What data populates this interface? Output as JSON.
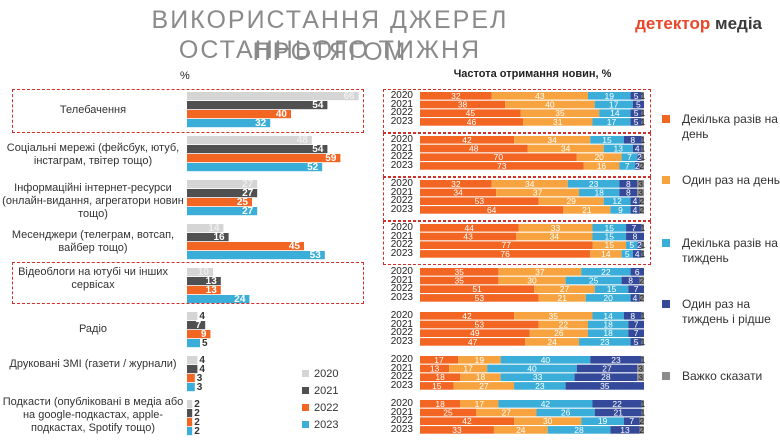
{
  "header": {
    "title_line1": "ВИКОРИСТАННЯ ДЖЕРЕЛ ПРОТЯГОМ",
    "title_line2": "ОСТАННЬОГО ТИЖНЯ",
    "logo_brand": "детектор",
    "logo_suffix": "медіа"
  },
  "colors": {
    "y2020": "#d5d5d5",
    "y2021": "#505050",
    "y2022": "#f26522",
    "y2023": "#3aaed8",
    "several_day": "#f26522",
    "once_day": "#f7a440",
    "several_week": "#3aaed8",
    "once_week": "#34499a",
    "hard": "#8c8c8c"
  },
  "chart_data": [
    {
      "type": "bar",
      "orientation": "horizontal",
      "unit_label": "%",
      "categories": [
        "Телебачення",
        "Соціальні мережі (фейсбук, ютуб, інстаграм, твітер тощо)",
        "Інформаційні інтернет-ресурси (онлайн-видання, агрегатори новин тощо)",
        "Месенджери (телеграм, вотсап, вайбер тощо)",
        "Відеоблоги на ютубі чи інших сервісах",
        "Радіо",
        "Друковані ЗМІ (газети / журнали)",
        "Подкасти (опубліковані в медіа або на google-подкастах, apple-подкастах, Spotify тощо)"
      ],
      "series": [
        {
          "name": "2020",
          "values": [
            66,
            48,
            27,
            14,
            10,
            4,
            4,
            2
          ]
        },
        {
          "name": "2021",
          "values": [
            54,
            54,
            27,
            16,
            13,
            7,
            4,
            2
          ]
        },
        {
          "name": "2022",
          "values": [
            40,
            59,
            25,
            45,
            13,
            9,
            3,
            2
          ]
        },
        {
          "name": "2023",
          "values": [
            32,
            52,
            27,
            53,
            24,
            5,
            3,
            2
          ]
        }
      ],
      "legend": [
        "2020",
        "2021",
        "2022",
        "2023"
      ],
      "highlighted": [
        "Телебачення",
        "Відеоблоги на ютубі чи інших сервісах"
      ]
    },
    {
      "type": "bar",
      "orientation": "horizontal",
      "stacked": true,
      "title": "Частота отримання новин, %",
      "years": [
        "2020",
        "2021",
        "2022",
        "2023"
      ],
      "legend": [
        "Декілька разів на день",
        "Один раз на день",
        "Декілька разів на тиждень",
        "Один раз на тиждень і рідше",
        "Важко сказати"
      ],
      "groups": [
        {
          "name": "Телебачення",
          "rows": [
            [
              32,
              43,
              19,
              5,
              1
            ],
            [
              38,
              40,
              17,
              5,
              0
            ],
            [
              45,
              35,
              14,
              5,
              1
            ],
            [
              46,
              31,
              17,
              5,
              1
            ]
          ]
        },
        {
          "name": "Соціальні мережі",
          "rows": [
            [
              42,
              34,
              15,
              8,
              1
            ],
            [
              48,
              34,
              13,
              4,
              1
            ],
            [
              70,
              20,
              7,
              2,
              1
            ],
            [
              73,
              16,
              7,
              2,
              2
            ]
          ]
        },
        {
          "name": "Інформаційні інтернет-ресурси",
          "rows": [
            [
              32,
              34,
              23,
              8,
              3
            ],
            [
              34,
              37,
              18,
              8,
              3
            ],
            [
              53,
              29,
              12,
              4,
              2
            ],
            [
              64,
              21,
              9,
              4,
              2
            ]
          ]
        },
        {
          "name": "Месенджери",
          "rows": [
            [
              44,
              33,
              15,
              7,
              1
            ],
            [
              43,
              34,
              15,
              8,
              0
            ],
            [
              77,
              15,
              5,
              2,
              1
            ],
            [
              76,
              14,
              5,
              4,
              1
            ]
          ]
        },
        {
          "name": "Відеоблоги",
          "rows": [
            [
              35,
              37,
              22,
              6,
              0
            ],
            [
              35,
              30,
              25,
              8,
              2
            ],
            [
              51,
              27,
              15,
              7,
              0
            ],
            [
              53,
              21,
              20,
              4,
              2
            ]
          ]
        },
        {
          "name": "Радіо",
          "rows": [
            [
              42,
              35,
              14,
              8,
              1
            ],
            [
              53,
              22,
              18,
              7,
              0
            ],
            [
              49,
              26,
              18,
              7,
              0
            ],
            [
              47,
              24,
              23,
              5,
              1
            ]
          ]
        },
        {
          "name": "Друковані ЗМІ",
          "rows": [
            [
              17,
              19,
              40,
              23,
              1
            ],
            [
              13,
              17,
              40,
              27,
              3
            ],
            [
              18,
              18,
              33,
              28,
              3
            ],
            [
              15,
              27,
              23,
              35,
              0
            ]
          ]
        },
        {
          "name": "Подкасти",
          "rows": [
            [
              18,
              17,
              42,
              22,
              1
            ],
            [
              25,
              27,
              26,
              21,
              1
            ],
            [
              42,
              30,
              19,
              7,
              2
            ],
            [
              33,
              24,
              28,
              13,
              2
            ]
          ]
        }
      ]
    }
  ]
}
